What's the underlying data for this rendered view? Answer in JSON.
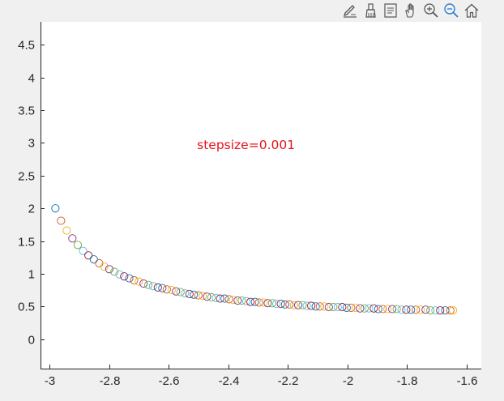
{
  "toolbar": {
    "buttons": [
      {
        "name": "edit-plot-icon"
      },
      {
        "name": "brush-icon"
      },
      {
        "name": "data-tips-icon"
      },
      {
        "name": "pan-icon"
      },
      {
        "name": "zoom-in-icon"
      },
      {
        "name": "zoom-out-icon"
      },
      {
        "name": "home-icon"
      }
    ]
  },
  "chart_data": {
    "type": "scatter",
    "title": "",
    "xlabel": "",
    "ylabel": "",
    "xlim": [
      -3.03,
      -1.55
    ],
    "ylim": [
      -0.45,
      4.85
    ],
    "xticks": [
      -3,
      -2.8,
      -2.6,
      -2.4,
      -2.2,
      -2,
      -1.8,
      -1.6
    ],
    "xtick_labels": [
      "-3",
      "-2.8",
      "-2.6",
      "-2.4",
      "-2.2",
      "-2",
      "-1.8",
      "-1.6"
    ],
    "yticks": [
      0,
      0.5,
      1,
      1.5,
      2,
      2.5,
      3,
      3.5,
      4,
      4.5
    ],
    "ytick_labels": [
      "0",
      "0.5",
      "1",
      "1.5",
      "2",
      "2.5",
      "3",
      "3.5",
      "4",
      "4.5"
    ],
    "grid": false,
    "marker": "open-circle",
    "annotation": {
      "text": "stepsize=0.001",
      "x": -2.34,
      "y": 2.98,
      "color": "#e8101a"
    },
    "color_cycle": [
      "#0072bd",
      "#d95319",
      "#edb120",
      "#7e2f8e",
      "#77ac30",
      "#4dbeee",
      "#a2142f"
    ],
    "x": [
      -2.98,
      -2.961,
      -2.942,
      -2.923,
      -2.905,
      -2.887,
      -2.869,
      -2.851,
      -2.833,
      -2.816,
      -2.799,
      -2.782,
      -2.765,
      -2.749,
      -2.732,
      -2.716,
      -2.7,
      -2.684,
      -2.668,
      -2.652,
      -2.636,
      -2.621,
      -2.606,
      -2.59,
      -2.575,
      -2.56,
      -2.545,
      -2.53,
      -2.515,
      -2.5,
      -2.485,
      -2.471,
      -2.456,
      -2.441,
      -2.427,
      -2.412,
      -2.397,
      -2.383,
      -2.368,
      -2.354,
      -2.339,
      -2.325,
      -2.31,
      -2.296,
      -2.281,
      -2.267,
      -2.252,
      -2.238,
      -2.223,
      -2.209,
      -2.194,
      -2.179,
      -2.165,
      -2.15,
      -2.136,
      -2.121,
      -2.106,
      -2.092,
      -2.077,
      -2.062,
      -2.047,
      -2.032,
      -2.017,
      -2.002,
      -1.987,
      -1.972,
      -1.957,
      -1.942,
      -1.927,
      -1.911,
      -1.896,
      -1.881,
      -1.865,
      -1.849,
      -1.834,
      -1.818,
      -1.802,
      -1.786,
      -1.77,
      -1.754,
      -1.737,
      -1.721,
      -1.704,
      -1.688,
      -1.671,
      -1.654,
      -1.645
    ],
    "y": [
      2.0,
      1.81,
      1.66,
      1.54,
      1.44,
      1.35,
      1.28,
      1.22,
      1.16,
      1.11,
      1.07,
      1.03,
      0.99,
      0.96,
      0.93,
      0.9,
      0.88,
      0.85,
      0.83,
      0.81,
      0.79,
      0.78,
      0.76,
      0.75,
      0.73,
      0.72,
      0.7,
      0.69,
      0.68,
      0.67,
      0.66,
      0.65,
      0.64,
      0.63,
      0.62,
      0.62,
      0.61,
      0.6,
      0.59,
      0.59,
      0.58,
      0.57,
      0.57,
      0.56,
      0.56,
      0.55,
      0.55,
      0.54,
      0.54,
      0.53,
      0.53,
      0.52,
      0.52,
      0.52,
      0.51,
      0.51,
      0.5,
      0.5,
      0.5,
      0.49,
      0.49,
      0.49,
      0.49,
      0.48,
      0.48,
      0.48,
      0.47,
      0.47,
      0.47,
      0.47,
      0.46,
      0.46,
      0.46,
      0.46,
      0.46,
      0.45,
      0.45,
      0.45,
      0.45,
      0.45,
      0.45,
      0.44,
      0.44,
      0.44,
      0.44,
      0.44,
      0.44
    ]
  }
}
